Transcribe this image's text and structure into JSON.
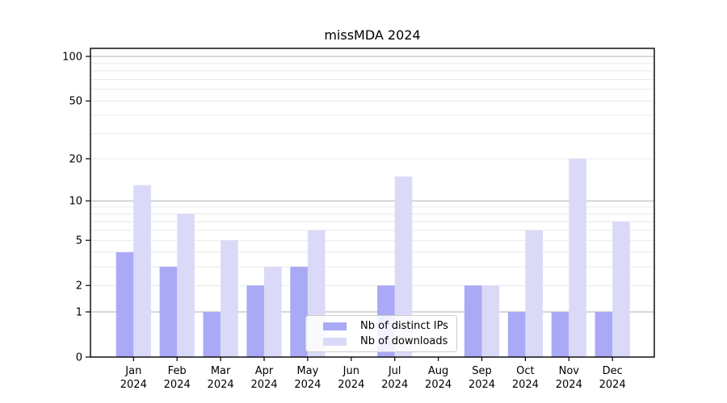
{
  "chart_data": {
    "type": "bar",
    "title": "missMDA 2024",
    "months": [
      "Jan",
      "Feb",
      "Mar",
      "Apr",
      "May",
      "Jun",
      "Jul",
      "Aug",
      "Sep",
      "Oct",
      "Nov",
      "Dec"
    ],
    "year": "2024",
    "categories": [
      "Jan 2024",
      "Feb 2024",
      "Mar 2024",
      "Apr 2024",
      "May 2024",
      "Jun 2024",
      "Jul 2024",
      "Aug 2024",
      "Sep 2024",
      "Oct 2024",
      "Nov 2024",
      "Dec 2024"
    ],
    "series": [
      {
        "name": "Nb of distinct IPs",
        "color": "#a9a9f5",
        "values": [
          4,
          3,
          1,
          2,
          3,
          0,
          2,
          0,
          2,
          1,
          1,
          1
        ]
      },
      {
        "name": "Nb of downloads",
        "color": "#dadaf8",
        "values": [
          13,
          8,
          5,
          3,
          6,
          0,
          15,
          0,
          2,
          6,
          20,
          7
        ]
      }
    ],
    "y_scale": "log1p",
    "ylim": [
      0,
      100
    ],
    "y_ticks": [
      0,
      1,
      2,
      5,
      10,
      20,
      50,
      100
    ],
    "y_major_gridlines": [
      1,
      10,
      100
    ],
    "y_minor_gridlines": [
      2,
      3,
      4,
      5,
      6,
      7,
      8,
      9,
      20,
      30,
      40,
      50,
      60,
      70,
      80,
      90
    ],
    "grid": "horizontal only",
    "legend_position": "inside lower center",
    "colors": {
      "axis": "#000000",
      "major_grid": "#b0b0b0",
      "minor_grid": "#e9e9e9",
      "background": "#ffffff"
    }
  }
}
